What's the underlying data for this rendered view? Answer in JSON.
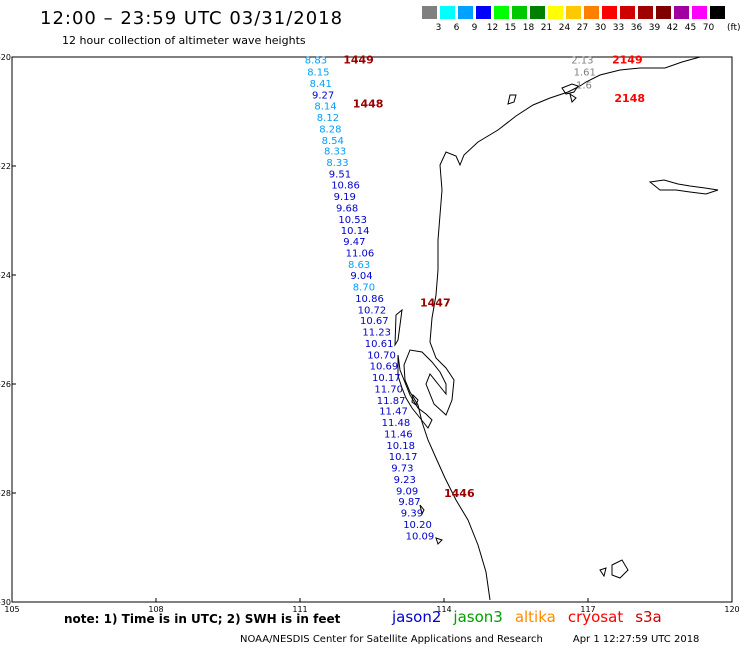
{
  "header": {
    "title": "12:00 – 23:59 UTC 03/31/2018",
    "subtitle": "12 hour collection of altimeter wave heights"
  },
  "legend": {
    "unit": "(ft)",
    "items": [
      {
        "label": "3",
        "color": "#808080"
      },
      {
        "label": "6",
        "color": "#00ffff"
      },
      {
        "label": "9",
        "color": "#00a0ff"
      },
      {
        "label": "12",
        "color": "#0000ff"
      },
      {
        "label": "15",
        "color": "#00ff00"
      },
      {
        "label": "18",
        "color": "#00c800"
      },
      {
        "label": "21",
        "color": "#008000"
      },
      {
        "label": "24",
        "color": "#ffff00"
      },
      {
        "label": "27",
        "color": "#ffc800"
      },
      {
        "label": "30",
        "color": "#ff8000"
      },
      {
        "label": "33",
        "color": "#ff0000"
      },
      {
        "label": "36",
        "color": "#d00000"
      },
      {
        "label": "39",
        "color": "#a00000"
      },
      {
        "label": "42",
        "color": "#800000"
      },
      {
        "label": "45",
        "color": "#a000a0"
      },
      {
        "label": "70",
        "color": "#ff00ff"
      },
      {
        "label": "",
        "color": "#000000"
      }
    ]
  },
  "map": {
    "lon_range": [
      105,
      120
    ],
    "lat_range": [
      -30,
      -20
    ],
    "lat_labels": [
      "-20",
      "-22",
      "-24",
      "-26",
      "-28",
      "-30"
    ],
    "lon_labels": [
      "105",
      "108",
      "111",
      "114",
      "117",
      "120"
    ]
  },
  "passes": [
    {
      "label": "1449",
      "lon": 111.9,
      "lat": -20.05,
      "color": "#990000"
    },
    {
      "label": "1448",
      "lon": 112.1,
      "lat": -20.85,
      "color": "#990000"
    },
    {
      "label": "1447",
      "lon": 113.5,
      "lat": -24.5,
      "color": "#990000"
    },
    {
      "label": "1446",
      "lon": 114.0,
      "lat": -28.0,
      "color": "#990000"
    },
    {
      "label": "2149",
      "lon": 117.5,
      "lat": -20.05,
      "color": "#ff0000"
    },
    {
      "label": "2148",
      "lon": 117.55,
      "lat": -20.75,
      "color": "#ff0000"
    }
  ],
  "track_jason2": [
    {
      "v": "8.83",
      "lon": 111.1,
      "lat": -20.05,
      "c": "#00a0ff"
    },
    {
      "v": "8.15",
      "lon": 111.15,
      "lat": -20.27,
      "c": "#00a0ff"
    },
    {
      "v": "8.41",
      "lon": 111.2,
      "lat": -20.48,
      "c": "#00a0ff"
    },
    {
      "v": "9.27",
      "lon": 111.25,
      "lat": -20.69,
      "c": "#0000cc"
    },
    {
      "v": "8.14",
      "lon": 111.3,
      "lat": -20.89,
      "c": "#00a0ff"
    },
    {
      "v": "8.12",
      "lon": 111.35,
      "lat": -21.1,
      "c": "#00a0ff"
    },
    {
      "v": "8.28",
      "lon": 111.4,
      "lat": -21.31,
      "c": "#00a0ff"
    },
    {
      "v": "8.54",
      "lon": 111.45,
      "lat": -21.52,
      "c": "#00a0ff"
    },
    {
      "v": "8.33",
      "lon": 111.5,
      "lat": -21.72,
      "c": "#00a0ff"
    },
    {
      "v": "8.33",
      "lon": 111.55,
      "lat": -21.93,
      "c": "#00a0ff"
    },
    {
      "v": "9.51",
      "lon": 111.6,
      "lat": -22.14,
      "c": "#0000cc"
    },
    {
      "v": "10.86",
      "lon": 111.65,
      "lat": -22.34,
      "c": "#0000cc"
    },
    {
      "v": "9.19",
      "lon": 111.7,
      "lat": -22.55,
      "c": "#0000cc"
    },
    {
      "v": "9.68",
      "lon": 111.75,
      "lat": -22.76,
      "c": "#0000cc"
    },
    {
      "v": "10.53",
      "lon": 111.8,
      "lat": -22.97,
      "c": "#0000cc"
    },
    {
      "v": "10.14",
      "lon": 111.85,
      "lat": -23.17,
      "c": "#0000cc"
    },
    {
      "v": "9.47",
      "lon": 111.9,
      "lat": -23.38,
      "c": "#0000cc"
    },
    {
      "v": "11.06",
      "lon": 111.95,
      "lat": -23.59,
      "c": "#0000cc"
    },
    {
      "v": "8.63",
      "lon": 112.0,
      "lat": -23.8,
      "c": "#00a0ff"
    },
    {
      "v": "9.04",
      "lon": 112.05,
      "lat": -24.0,
      "c": "#0000cc"
    },
    {
      "v": "8.70",
      "lon": 112.1,
      "lat": -24.21,
      "c": "#00a0ff"
    },
    {
      "v": "10.86",
      "lon": 112.15,
      "lat": -24.42,
      "c": "#0000cc"
    },
    {
      "v": "10.72",
      "lon": 112.2,
      "lat": -24.63,
      "c": "#0000cc"
    },
    {
      "v": "10.67",
      "lon": 112.25,
      "lat": -24.83,
      "c": "#0000cc"
    },
    {
      "v": "11.23",
      "lon": 112.3,
      "lat": -25.04,
      "c": "#0000cc"
    },
    {
      "v": "10.61",
      "lon": 112.35,
      "lat": -25.25,
      "c": "#0000cc"
    },
    {
      "v": "10.70",
      "lon": 112.4,
      "lat": -25.46,
      "c": "#0000cc"
    },
    {
      "v": "10.69",
      "lon": 112.45,
      "lat": -25.66,
      "c": "#0000cc"
    },
    {
      "v": "10.17",
      "lon": 112.5,
      "lat": -25.87,
      "c": "#0000cc"
    },
    {
      "v": "11.70",
      "lon": 112.55,
      "lat": -26.08,
      "c": "#0000cc"
    },
    {
      "v": "11.87",
      "lon": 112.6,
      "lat": -26.29,
      "c": "#0000cc"
    },
    {
      "v": "11.47",
      "lon": 112.65,
      "lat": -26.49,
      "c": "#0000cc"
    },
    {
      "v": "11.48",
      "lon": 112.7,
      "lat": -26.7,
      "c": "#0000cc"
    },
    {
      "v": "11.46",
      "lon": 112.75,
      "lat": -26.91,
      "c": "#0000cc"
    },
    {
      "v": "10.18",
      "lon": 112.8,
      "lat": -27.12,
      "c": "#0000cc"
    },
    {
      "v": "10.17",
      "lon": 112.85,
      "lat": -27.32,
      "c": "#0000cc"
    },
    {
      "v": "9.73",
      "lon": 112.9,
      "lat": -27.53,
      "c": "#0000cc"
    },
    {
      "v": "9.23",
      "lon": 112.95,
      "lat": -27.74,
      "c": "#0000cc"
    },
    {
      "v": "9.09",
      "lon": 113.0,
      "lat": -27.95,
      "c": "#0000cc"
    },
    {
      "v": "9.87",
      "lon": 113.05,
      "lat": -28.15,
      "c": "#0000cc"
    },
    {
      "v": "9.39",
      "lon": 113.1,
      "lat": -28.36,
      "c": "#0000cc"
    },
    {
      "v": "10.20",
      "lon": 113.15,
      "lat": -28.57,
      "c": "#0000cc"
    },
    {
      "v": "10.09",
      "lon": 113.2,
      "lat": -28.78,
      "c": "#0000cc"
    }
  ],
  "track_s3a": [
    {
      "v": "2.13",
      "lon": 116.65,
      "lat": -20.05,
      "c": "#808080"
    },
    {
      "v": "1.61",
      "lon": 116.7,
      "lat": -20.27,
      "c": "#808080"
    },
    {
      "v": "1.6",
      "lon": 116.75,
      "lat": -20.5,
      "c": "#808080"
    }
  ],
  "note": "note:  1) Time is in UTC;  2) SWH is in feet",
  "satellites": [
    {
      "name": "jason2",
      "color": "#0000cc"
    },
    {
      "name": "jason3",
      "color": "#00a000"
    },
    {
      "name": "altika",
      "color": "#ff8c00"
    },
    {
      "name": "cryosat",
      "color": "#ff0000"
    },
    {
      "name": "s3a",
      "color": "#cc0000"
    }
  ],
  "footer": {
    "credit": "NOAA/NESDIS Center for Satellite Applications and Research",
    "timestamp": "Apr  1 12:27:59 UTC 2018"
  }
}
